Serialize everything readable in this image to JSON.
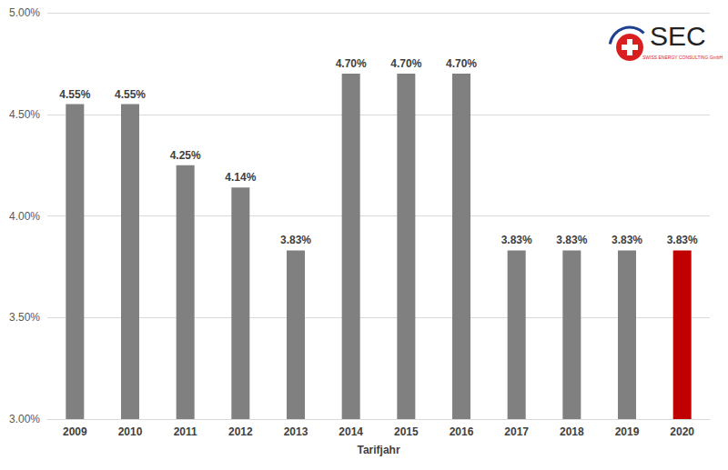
{
  "chart_data": {
    "type": "bar",
    "x_label": "Tarifjahr",
    "categories": [
      "2009",
      "2010",
      "2011",
      "2012",
      "2013",
      "2014",
      "2015",
      "2016",
      "2017",
      "2018",
      "2019",
      "2020"
    ],
    "values": [
      4.55,
      4.55,
      4.25,
      4.14,
      3.83,
      4.7,
      4.7,
      4.7,
      3.83,
      3.83,
      3.83,
      3.83
    ],
    "value_labels": [
      "4.55%",
      "4.55%",
      "4.25%",
      "4.14%",
      "3.83%",
      "4.70%",
      "4.70%",
      "4.70%",
      "3.83%",
      "3.83%",
      "3.83%",
      "3.83%"
    ],
    "colors": [
      "#808080",
      "#808080",
      "#808080",
      "#808080",
      "#808080",
      "#808080",
      "#808080",
      "#808080",
      "#808080",
      "#808080",
      "#808080",
      "#c00000"
    ],
    "ylim": [
      3,
      5
    ],
    "yticks": [
      {
        "value": 3,
        "label": "3.00%"
      },
      {
        "value": 3.5,
        "label": "3.50%"
      },
      {
        "value": 4,
        "label": "4.00%"
      },
      {
        "value": 4.5,
        "label": "4.50%"
      },
      {
        "value": 5,
        "label": "5.00%"
      }
    ],
    "data_labels": true,
    "grid": true,
    "annotations": [
      "SEC",
      "SWISS ENERGY CONSULTING GmbH"
    ]
  }
}
